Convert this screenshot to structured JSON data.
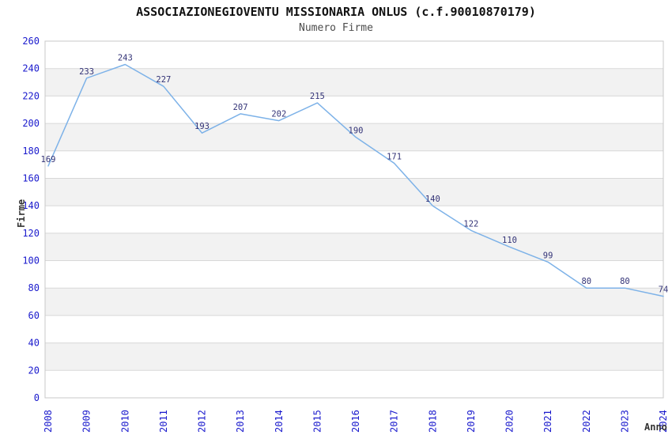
{
  "chart_data": {
    "type": "line",
    "title": "ASSOCIAZIONEGIOVENTU MISSIONARIA ONLUS (c.f.90010870179)",
    "subtitle": "Numero Firme",
    "xlabel": "Anno",
    "ylabel": "Firme",
    "categories": [
      "2008",
      "2009",
      "2010",
      "2011",
      "2012",
      "2013",
      "2014",
      "2015",
      "2016",
      "2017",
      "2018",
      "2019",
      "2020",
      "2021",
      "2022",
      "2023",
      "2024"
    ],
    "values": [
      169,
      233,
      243,
      227,
      193,
      207,
      202,
      215,
      190,
      171,
      140,
      122,
      110,
      99,
      80,
      80,
      74
    ],
    "ylim": [
      0,
      260
    ],
    "ytick_step": 20,
    "grid": true,
    "legend": "none",
    "data_labels": true,
    "banded_background": true
  },
  "colors": {
    "line": "#7db2e8",
    "tick_label": "#1a1acd",
    "data_label": "#333377",
    "band": "#f2f2f2",
    "gridline": "#d8d8d8",
    "plot_border": "#c8c8c8",
    "title": "#111111",
    "subtitle": "#4d4d4d",
    "axis_title": "#333333"
  }
}
